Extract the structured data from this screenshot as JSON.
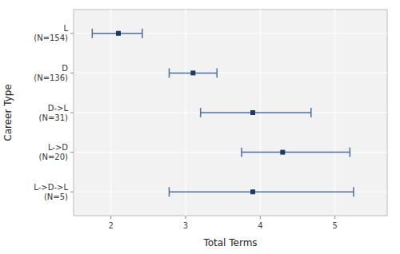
{
  "chart_data": {
    "type": "interval",
    "orientation": "horizontal",
    "categories": [
      "L\n(N=154)",
      "D\n(N=136)",
      "D->L\n(N=31)",
      "L->D\n(N=20)",
      "L->D->L\n(N=5)"
    ],
    "values": [
      2.1,
      3.1,
      3.9,
      4.3,
      3.9
    ],
    "ci_lower": [
      1.75,
      2.78,
      3.2,
      3.75,
      2.78
    ],
    "ci_upper": [
      2.42,
      3.42,
      4.68,
      5.2,
      5.25
    ],
    "xlabel": "Total Terms",
    "ylabel": "Career Type",
    "xlim": [
      1.5,
      5.7
    ],
    "xticks": [
      2,
      3,
      4,
      5
    ],
    "grid": true
  }
}
